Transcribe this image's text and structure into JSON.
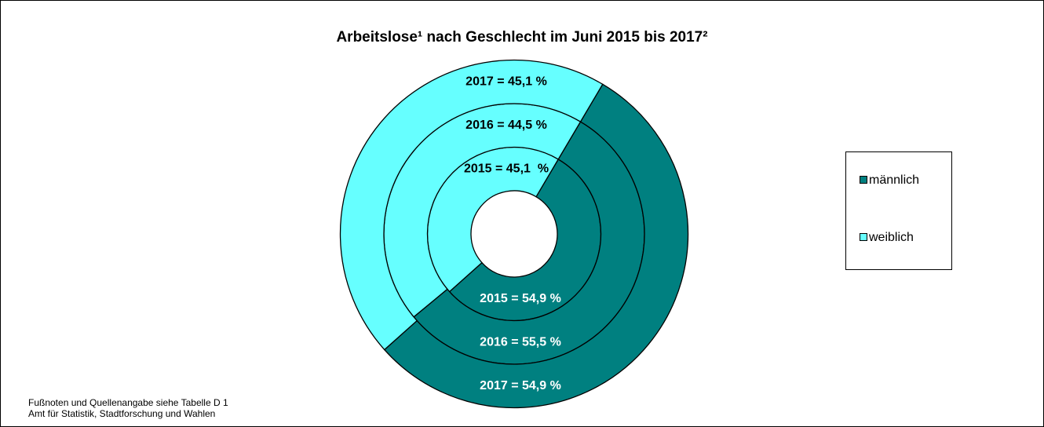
{
  "chart_data": {
    "type": "doughnut",
    "title": "Arbeitslose¹ nach Geschlecht im Juni 2015 bis 2017²",
    "series": [
      {
        "name": "männlich",
        "color": "#008080",
        "values": [
          54.9,
          55.5,
          54.9
        ],
        "value_labels": [
          "2015 = 54,9 %",
          "2016 = 55,5 %",
          "2017 = 54,9 %"
        ]
      },
      {
        "name": "weiblich",
        "color": "#66ffff",
        "values": [
          45.1,
          44.5,
          45.1
        ],
        "value_labels": [
          "2015 = 45,1  %",
          "2016 = 44,5 %",
          "2017 = 45,1 %"
        ]
      }
    ],
    "legend": "right",
    "notes": [
      "Fußnoten und Quellenangabe siehe Tabelle D 1",
      "Amt für Statistik, Stadtforschung und Wahlen"
    ]
  }
}
